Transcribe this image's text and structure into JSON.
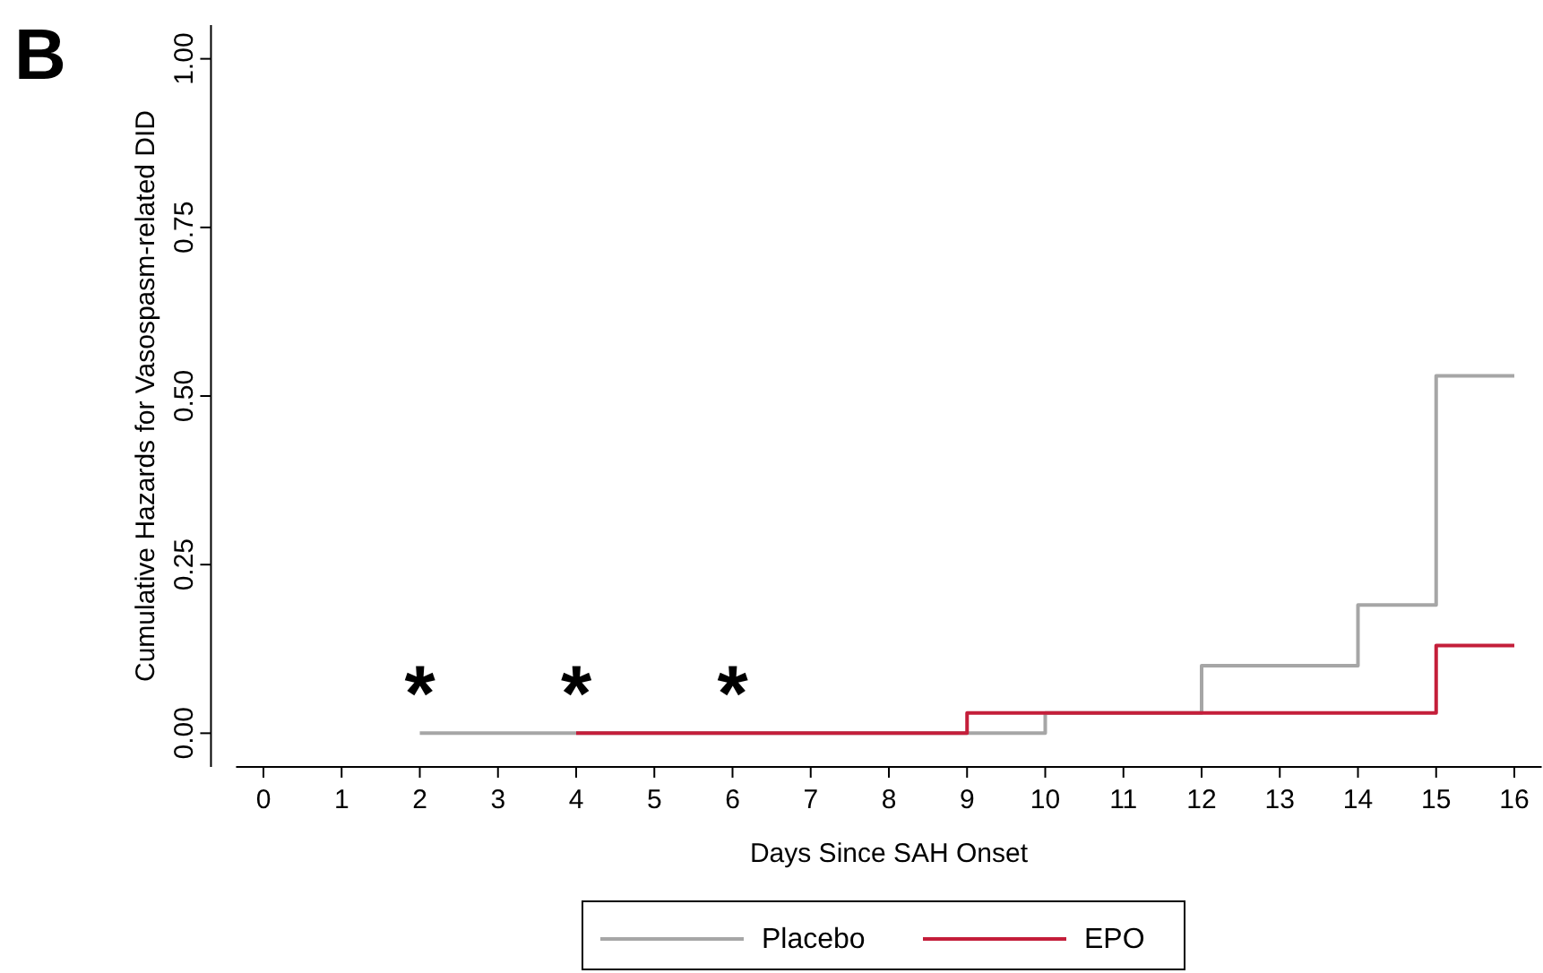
{
  "chart_data": {
    "type": "step",
    "xlabel": "Days Since SAH Onset",
    "ylabel": "Cumulative Hazards for Vasospasm-related DID",
    "xlim": [
      -0.35,
      16.35
    ],
    "ylim": [
      -0.05,
      1.05
    ],
    "xticks": [
      0,
      1,
      2,
      3,
      4,
      5,
      6,
      7,
      8,
      9,
      10,
      11,
      12,
      13,
      14,
      15,
      16
    ],
    "yticks": [
      {
        "value": 0,
        "label": "0.00"
      },
      {
        "value": 0.25,
        "label": "0.25"
      },
      {
        "value": 0.5,
        "label": "0.50"
      },
      {
        "value": 0.75,
        "label": "0.75"
      },
      {
        "value": 1,
        "label": "1.00"
      }
    ],
    "series": [
      {
        "name": "Placebo",
        "color": "#a6a6a6",
        "x": [
          2,
          10,
          12,
          14,
          15,
          16
        ],
        "values": [
          0,
          0.03,
          0.1,
          0.19,
          0.53,
          0.53
        ]
      },
      {
        "name": "EPO",
        "color": "#c41e3a",
        "x": [
          4,
          9,
          15,
          16
        ],
        "values": [
          0,
          0.03,
          0.13,
          0.13
        ]
      }
    ],
    "annotations": [
      "B",
      "*",
      "*",
      "*"
    ],
    "legend": "bottom",
    "grid": false,
    "line_style": "solid"
  }
}
